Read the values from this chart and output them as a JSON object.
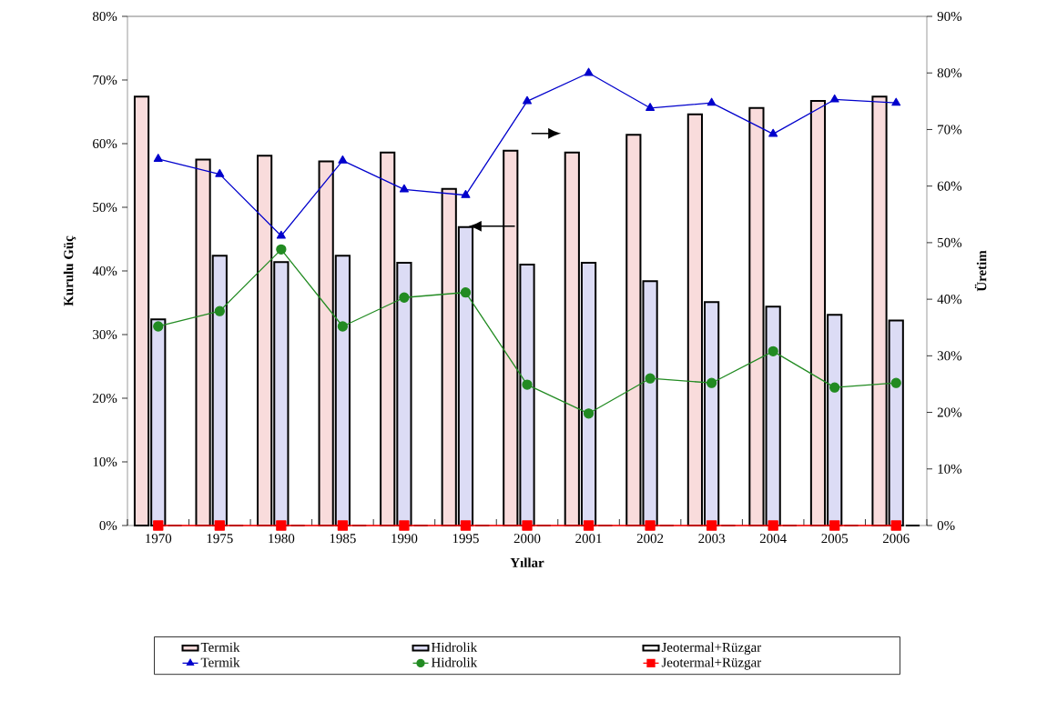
{
  "chart_data": {
    "type": "bar",
    "xlabel": "Yıllar",
    "ylabel": "Kurulu Güç",
    "y2label": "Üretim",
    "categories": [
      "1970",
      "1975",
      "1980",
      "1985",
      "1990",
      "1995",
      "2000",
      "2001",
      "2002",
      "2003",
      "2004",
      "2005",
      "2006"
    ],
    "ylim": [
      0,
      80
    ],
    "yticks": [
      {
        "value": 0,
        "label": "0%"
      },
      {
        "value": 10,
        "label": "10%"
      },
      {
        "value": 20,
        "label": "20%"
      },
      {
        "value": 30,
        "label": "30%"
      },
      {
        "value": 40,
        "label": "40%"
      },
      {
        "value": 50,
        "label": "50%"
      },
      {
        "value": 60,
        "label": "60%"
      },
      {
        "value": 70,
        "label": "70%"
      },
      {
        "value": 80,
        "label": "80%"
      }
    ],
    "y2lim": [
      0,
      90
    ],
    "y2ticks": [
      {
        "value": 0,
        "label": "0%"
      },
      {
        "value": 10,
        "label": "10%"
      },
      {
        "value": 20,
        "label": "20%"
      },
      {
        "value": 30,
        "label": "30%"
      },
      {
        "value": 40,
        "label": "40%"
      },
      {
        "value": 50,
        "label": "50%"
      },
      {
        "value": 60,
        "label": "60%"
      },
      {
        "value": 70,
        "label": "70%"
      },
      {
        "value": 80,
        "label": "80%"
      },
      {
        "value": 90,
        "label": "90%"
      }
    ],
    "legend": "bottom",
    "series": [
      {
        "name": "Termik",
        "color": "#f9dcdc",
        "values": [
          67.4,
          57.5,
          58.1,
          57.2,
          58.6,
          52.9,
          58.9,
          58.6,
          61.4,
          64.6,
          65.6,
          66.7,
          67.4
        ]
      },
      {
        "name": "Hidrolik",
        "color": "#dcdcf5",
        "values": [
          32.4,
          42.4,
          41.4,
          42.4,
          41.3,
          46.9,
          41.0,
          41.3,
          38.4,
          35.1,
          34.4,
          33.1,
          32.2
        ]
      },
      {
        "name": "Jeotermal+Rüzgar",
        "color": "#ffffff",
        "values": [
          0,
          0,
          0,
          0,
          0,
          0,
          0,
          0,
          0,
          0,
          0,
          0,
          0
        ]
      },
      {
        "name": "Termik",
        "type": "line",
        "axis": "y2",
        "marker": "triangle",
        "color": "#0000cc",
        "values": [
          64.8,
          62.1,
          51.2,
          64.5,
          59.4,
          58.4,
          75.0,
          80.0,
          73.8,
          74.7,
          69.2,
          75.3,
          74.7
        ]
      },
      {
        "name": "Hidrolik",
        "type": "line",
        "axis": "y2",
        "marker": "circle",
        "color": "#228b22",
        "values": [
          35.2,
          37.9,
          48.8,
          35.2,
          40.3,
          41.2,
          24.9,
          19.8,
          26.0,
          25.2,
          30.8,
          24.4,
          25.2
        ]
      },
      {
        "name": "Jeotermal+Rüzgar",
        "type": "line",
        "axis": "y2",
        "marker": "square",
        "color": "#ff0000",
        "values": [
          0,
          0,
          0,
          0,
          0,
          0,
          0,
          0,
          0,
          0,
          0,
          0,
          0
        ]
      }
    ]
  }
}
